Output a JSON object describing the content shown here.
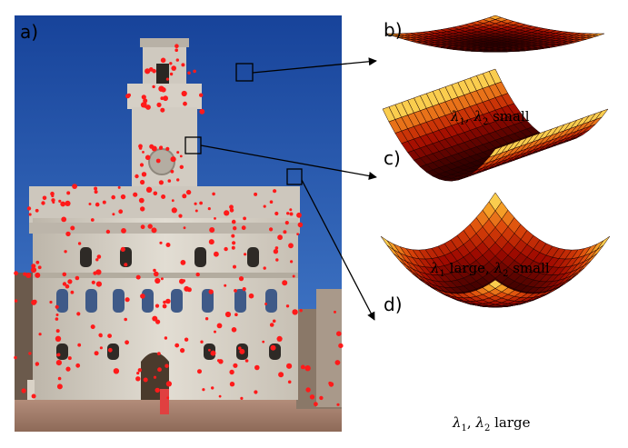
{
  "panels": [
    {
      "id": "a",
      "label": "a)"
    },
    {
      "id": "b",
      "label": "b)"
    },
    {
      "id": "c",
      "label": "c)"
    },
    {
      "id": "d",
      "label": "d)"
    }
  ],
  "captions": {
    "b": {
      "sym1": "λ",
      "sub1": "1",
      "sep": ", ",
      "sym2": "λ",
      "sub2": "2",
      "text": " small"
    },
    "c": {
      "sym1": "λ",
      "sub1": "1",
      "mid": " large, ",
      "sym2": "λ",
      "sub2": "2",
      "text": " small"
    },
    "d": {
      "sym1": "λ",
      "sub1": "1",
      "sep": ", ",
      "sym2": "λ",
      "sub2": "2",
      "text": " large"
    }
  },
  "colors": {
    "sky_top": "#1f4fa8",
    "sky_bottom": "#3a72c7",
    "stone": "#d8d3ca",
    "corner_dot": "#ff1a1a",
    "surface_dark": "#3a0000",
    "surface_mid": "#d03010",
    "surface_light": "#ffff80"
  }
}
